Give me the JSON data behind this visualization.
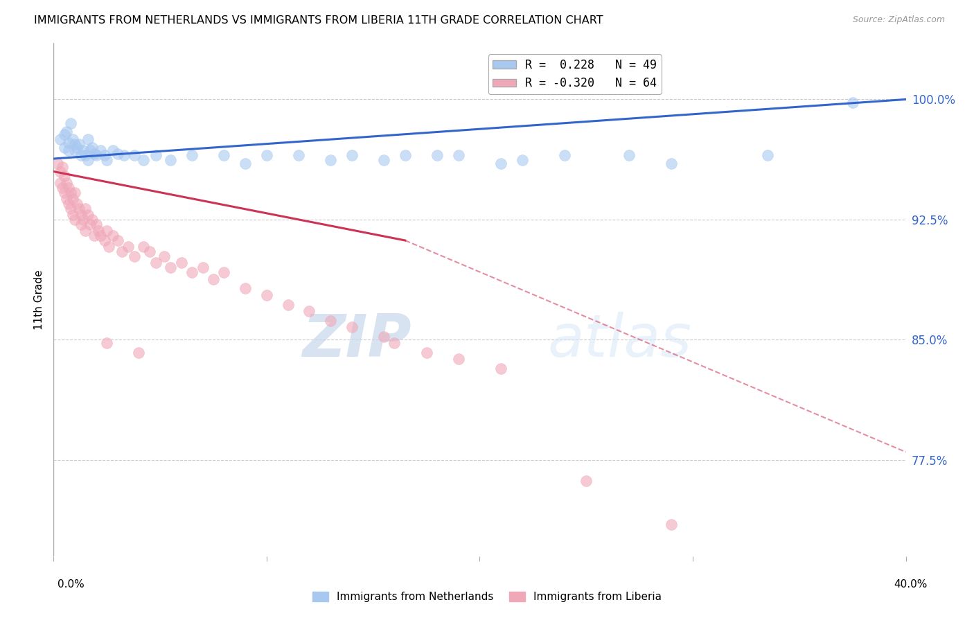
{
  "title": "IMMIGRANTS FROM NETHERLANDS VS IMMIGRANTS FROM LIBERIA 11TH GRADE CORRELATION CHART",
  "source": "Source: ZipAtlas.com",
  "ylabel": "11th Grade",
  "ytick_values": [
    1.0,
    0.925,
    0.85,
    0.775
  ],
  "ytick_labels": [
    "100.0%",
    "92.5%",
    "85.0%",
    "77.5%"
  ],
  "xlim": [
    0.0,
    0.4
  ],
  "ylim": [
    0.715,
    1.035
  ],
  "legend_label_blue": "R =  0.228   N = 49",
  "legend_label_pink": "R = -0.320   N = 64",
  "blue_color": "#a8c8f0",
  "pink_color": "#f0a8b8",
  "blue_line_color": "#3366cc",
  "pink_line_color": "#cc3355",
  "blue_line_x0": 0.0,
  "blue_line_y0": 0.963,
  "blue_line_x1": 0.4,
  "blue_line_y1": 1.0,
  "pink_line_solid_x0": 0.0,
  "pink_line_solid_y0": 0.955,
  "pink_line_solid_x1": 0.165,
  "pink_line_solid_y1": 0.912,
  "pink_line_dash_x0": 0.165,
  "pink_line_dash_y0": 0.912,
  "pink_line_dash_x1": 0.4,
  "pink_line_dash_y1": 0.78,
  "blue_scatter_x": [
    0.003,
    0.005,
    0.005,
    0.006,
    0.007,
    0.007,
    0.008,
    0.009,
    0.01,
    0.01,
    0.011,
    0.012,
    0.013,
    0.014,
    0.015,
    0.016,
    0.016,
    0.017,
    0.018,
    0.019,
    0.02,
    0.022,
    0.024,
    0.025,
    0.028,
    0.03,
    0.033,
    0.038,
    0.042,
    0.048,
    0.055,
    0.065,
    0.08,
    0.09,
    0.1,
    0.115,
    0.13,
    0.14,
    0.155,
    0.165,
    0.18,
    0.19,
    0.21,
    0.22,
    0.24,
    0.27,
    0.29,
    0.335,
    0.375
  ],
  "blue_scatter_y": [
    0.975,
    0.978,
    0.97,
    0.98,
    0.973,
    0.968,
    0.985,
    0.975,
    0.972,
    0.968,
    0.97,
    0.972,
    0.965,
    0.968,
    0.965,
    0.975,
    0.962,
    0.968,
    0.97,
    0.966,
    0.965,
    0.968,
    0.965,
    0.962,
    0.968,
    0.966,
    0.965,
    0.965,
    0.962,
    0.965,
    0.962,
    0.965,
    0.965,
    0.96,
    0.965,
    0.965,
    0.962,
    0.965,
    0.962,
    0.965,
    0.965,
    0.965,
    0.96,
    0.962,
    0.965,
    0.965,
    0.96,
    0.965,
    0.998
  ],
  "pink_scatter_x": [
    0.002,
    0.003,
    0.003,
    0.004,
    0.004,
    0.005,
    0.005,
    0.006,
    0.006,
    0.007,
    0.007,
    0.008,
    0.008,
    0.009,
    0.009,
    0.01,
    0.01,
    0.011,
    0.012,
    0.013,
    0.013,
    0.014,
    0.015,
    0.015,
    0.016,
    0.017,
    0.018,
    0.019,
    0.02,
    0.021,
    0.022,
    0.024,
    0.025,
    0.026,
    0.028,
    0.03,
    0.032,
    0.035,
    0.038,
    0.042,
    0.045,
    0.048,
    0.052,
    0.055,
    0.06,
    0.065,
    0.07,
    0.075,
    0.08,
    0.09,
    0.1,
    0.11,
    0.12,
    0.13,
    0.14,
    0.155,
    0.16,
    0.175,
    0.19,
    0.21,
    0.025,
    0.04,
    0.25,
    0.29
  ],
  "pink_scatter_y": [
    0.96,
    0.955,
    0.948,
    0.958,
    0.945,
    0.952,
    0.942,
    0.948,
    0.938,
    0.945,
    0.935,
    0.942,
    0.932,
    0.938,
    0.928,
    0.942,
    0.925,
    0.935,
    0.932,
    0.928,
    0.922,
    0.925,
    0.932,
    0.918,
    0.928,
    0.922,
    0.925,
    0.915,
    0.922,
    0.918,
    0.915,
    0.912,
    0.918,
    0.908,
    0.915,
    0.912,
    0.905,
    0.908,
    0.902,
    0.908,
    0.905,
    0.898,
    0.902,
    0.895,
    0.898,
    0.892,
    0.895,
    0.888,
    0.892,
    0.882,
    0.878,
    0.872,
    0.868,
    0.862,
    0.858,
    0.852,
    0.848,
    0.842,
    0.838,
    0.832,
    0.848,
    0.842,
    0.762,
    0.735
  ],
  "watermark_zip": "ZIP",
  "watermark_atlas": "atlas",
  "grid_color": "#cccccc",
  "background_color": "#ffffff"
}
